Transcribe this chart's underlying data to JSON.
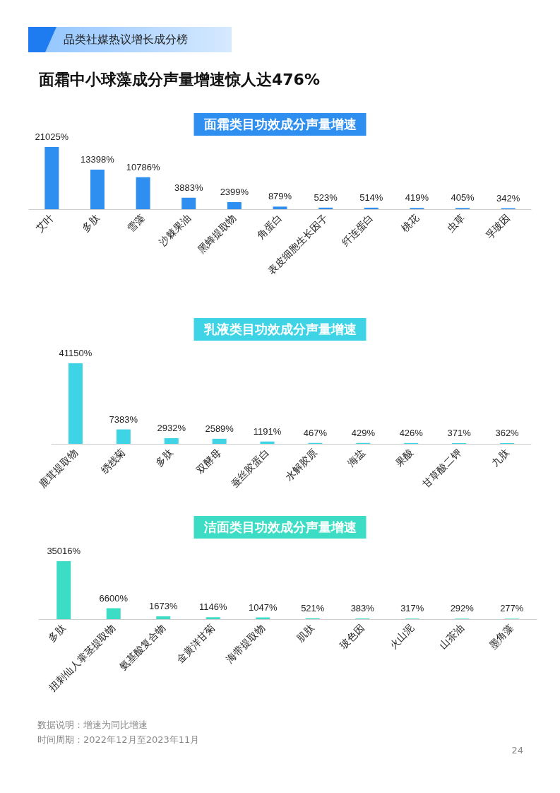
{
  "chart_data": [
    {
      "type": "other",
      "subtitle": "品类社媒热议增长成分榜",
      "title": "面霜中小球藻成分声量增速惊人达476%"
    },
    {
      "type": "bar",
      "title": "面霜类目功效成分声量增速",
      "categories": [
        "艾叶",
        "多肽",
        "雪藻",
        "沙棘果油",
        "黑蜂提取物",
        "角蛋白",
        "表皮细胞生长因子",
        "纤连蛋白",
        "桃花",
        "虫草",
        "孚玻因"
      ],
      "values": [
        21025,
        13398,
        10786,
        3883,
        2399,
        879,
        523,
        514,
        419,
        405,
        342
      ],
      "value_labels": [
        "21025%",
        "13398%",
        "10786%",
        "3883%",
        "2399%",
        "879%",
        "523%",
        "514%",
        "419%",
        "405%",
        "342%"
      ],
      "color": "#2e8ff0"
    },
    {
      "type": "bar",
      "title": "乳液类目功效成分声量增速",
      "categories": [
        "鹿茸提取物",
        "绣线菊",
        "多肽",
        "双酵母",
        "蚕丝胶蛋白",
        "水解胶原",
        "海盐",
        "果酸",
        "甘草酸二钾",
        "九肽"
      ],
      "values": [
        41150,
        7383,
        2932,
        2589,
        1191,
        467,
        429,
        426,
        371,
        362
      ],
      "value_labels": [
        "41150%",
        "7383%",
        "2932%",
        "2589%",
        "1191%",
        "467%",
        "429%",
        "426%",
        "371%",
        "362%"
      ],
      "color": "#3fd3e6"
    },
    {
      "type": "bar",
      "title": "洁面类目功效成分声量增速",
      "categories": [
        "多肽",
        "扭刺仙人掌茎提取物",
        "氨基酸复合物",
        "金黄洋甘菊",
        "海带提取物",
        "肌肽",
        "玻色因",
        "火山泥",
        "山茶油",
        "墨角藻"
      ],
      "values": [
        35016,
        6600,
        1673,
        1146,
        1047,
        521,
        383,
        317,
        292,
        277
      ],
      "value_labels": [
        "35016%",
        "6600%",
        "1673%",
        "1146%",
        "1047%",
        "521%",
        "383%",
        "317%",
        "292%",
        "277%"
      ],
      "color": "#3ddcc4"
    },
    {
      "type": "other",
      "annotations": [
        "数据说明：增速为同比增速",
        "时间周期：2022年12月至2023年11月",
        "24"
      ]
    }
  ]
}
